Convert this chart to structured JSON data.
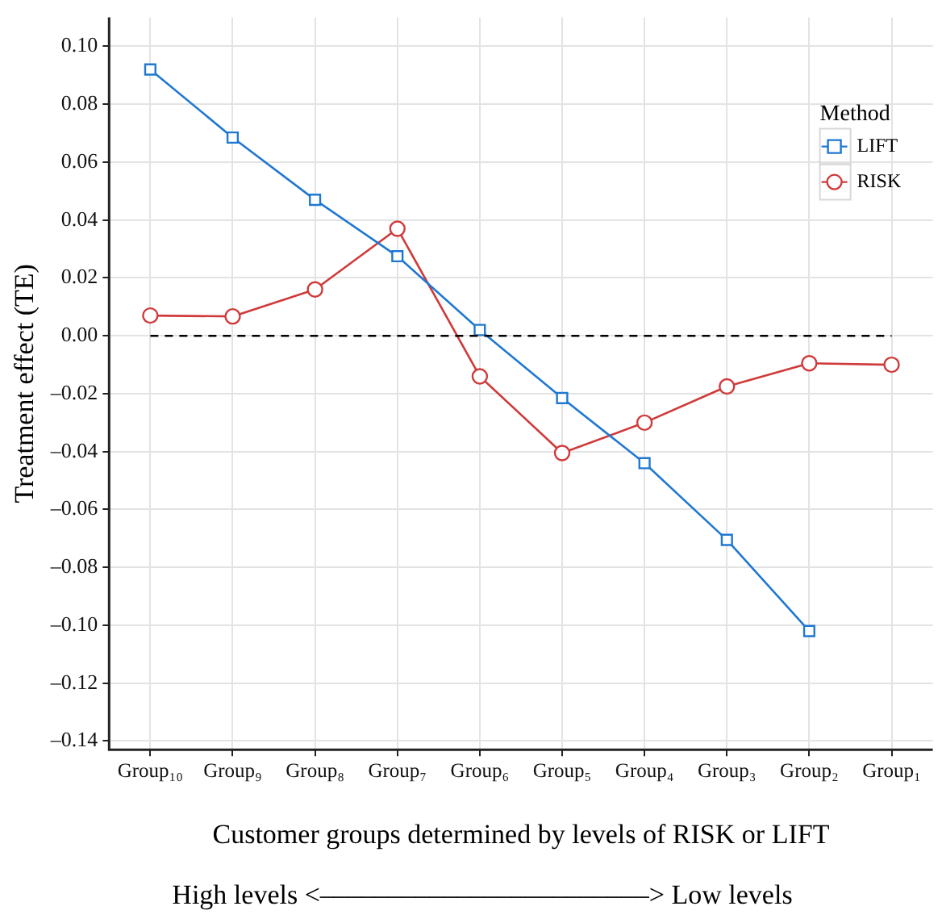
{
  "chart_data": {
    "type": "line",
    "xlabel": "Customer groups determined by levels of RISK or LIFT",
    "ylabel": "Treatment effect (TE)",
    "legend_title": "Method",
    "annotations": [
      "High levels <––––––––––––––––––––––––> Low levels"
    ],
    "categories": [
      "Group₁₀",
      "Group₉",
      "Group₈",
      "Group₇",
      "Group₆",
      "Group₅",
      "Group₄",
      "Group₃",
      "Group₂",
      "Group₁"
    ],
    "series": [
      {
        "name": "LIFT",
        "color": "#1f78d1",
        "marker": "square",
        "values": [
          0.092,
          0.0685,
          0.047,
          0.0275,
          0.002,
          -0.0215,
          -0.044,
          -0.0705,
          -0.102,
          null
        ]
      },
      {
        "name": "RISK",
        "color": "#d03a3a",
        "marker": "circle",
        "values": [
          0.007,
          0.0067,
          0.016,
          0.037,
          -0.014,
          -0.0405,
          -0.03,
          -0.0175,
          -0.0095,
          -0.01
        ]
      }
    ],
    "ylim": [
      -0.143,
      0.11
    ],
    "yticks": [
      {
        "value": 0.1,
        "label": "0.10"
      },
      {
        "value": 0.08,
        "label": "0.08"
      },
      {
        "value": 0.06,
        "label": "0.06"
      },
      {
        "value": 0.04,
        "label": "0.04"
      },
      {
        "value": 0.02,
        "label": "0.02"
      },
      {
        "value": 0,
        "label": "0.00"
      },
      {
        "value": -0.02,
        "label": "–0.02"
      },
      {
        "value": -0.04,
        "label": "–0.04"
      },
      {
        "value": -0.06,
        "label": "–0.06"
      },
      {
        "value": -0.08,
        "label": "–0.08"
      },
      {
        "value": -0.1,
        "label": "–0.10"
      },
      {
        "value": -0.12,
        "label": "–0.12"
      },
      {
        "value": -0.14,
        "label": "–0.14"
      }
    ],
    "ref_lines": [
      {
        "axis": "y",
        "value": 0,
        "color": "#000000",
        "line_style": "dashed"
      }
    ],
    "grid": true,
    "legend": "top right",
    "line_style": "solid"
  }
}
